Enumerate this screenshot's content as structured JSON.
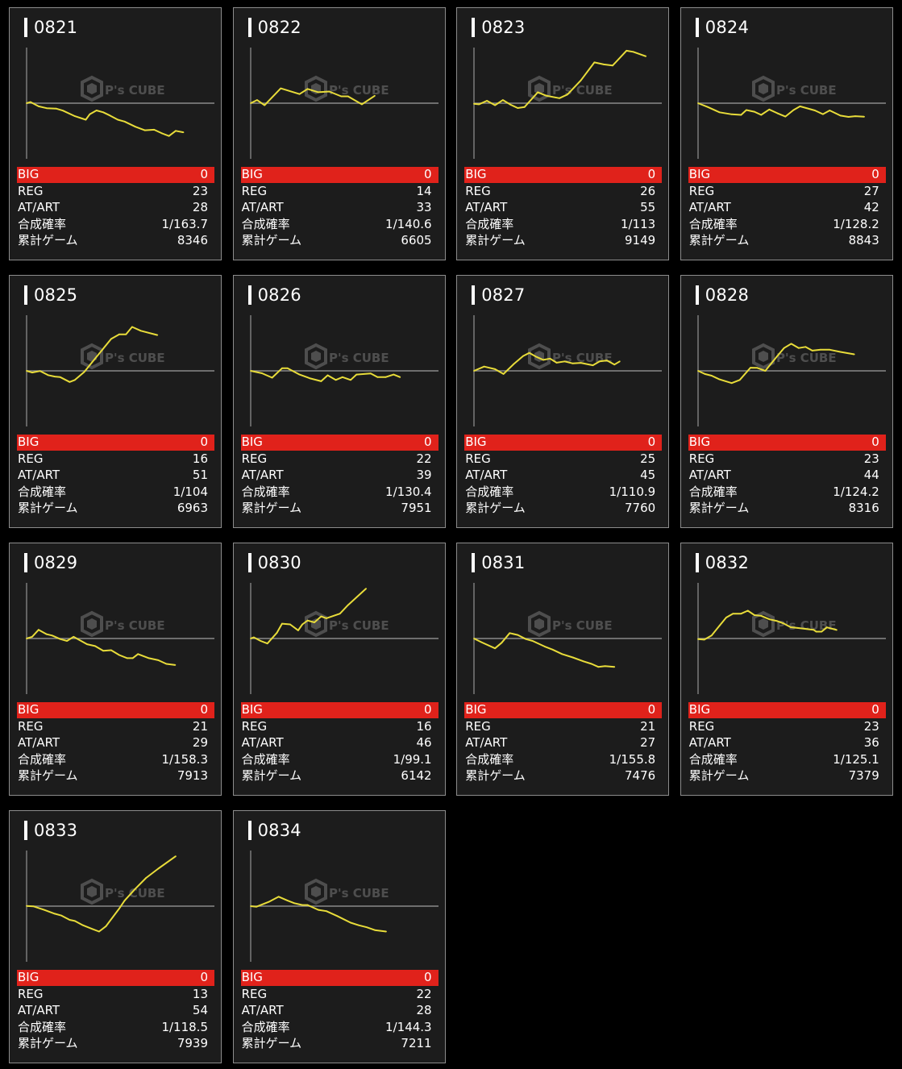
{
  "labels": {
    "big": "BIG",
    "reg": "REG",
    "at": "AT/ART",
    "prob": "合成確率",
    "games": "累計ゲーム"
  },
  "watermark": "P's CUBE",
  "colors": {
    "line": "#e8dc3a",
    "big_bar": "#e0221b",
    "axis": "#8a8a8a",
    "card_bg": "#1c1c1c"
  },
  "chart_axes": {
    "x_unit": "games",
    "x_range": [
      0,
      10000
    ],
    "y_unit": "diff",
    "y_range": [
      -3000,
      3000
    ]
  },
  "machines": [
    {
      "id": "0821",
      "big": "0",
      "reg": "23",
      "at": "28",
      "prob": "1/163.7",
      "games": "8346",
      "x": [
        0,
        210,
        640,
        1070,
        1570,
        1930,
        2570,
        3150,
        3360,
        3720,
        4080,
        4430,
        4860,
        5220,
        5790,
        6290,
        6790,
        7220,
        7580,
        7940,
        8346
      ],
      "y": [
        0,
        60,
        -170,
        -270,
        -290,
        -400,
        -700,
        -890,
        -600,
        -390,
        -490,
        -660,
        -890,
        -990,
        -1270,
        -1460,
        -1430,
        -1630,
        -1770,
        -1490,
        -1570
      ]
    },
    {
      "id": "0822",
      "big": "0",
      "reg": "14",
      "at": "33",
      "prob": "1/140.6",
      "games": "6605",
      "x": [
        0,
        340,
        740,
        1600,
        2600,
        3030,
        3600,
        4180,
        4820,
        5180,
        5920,
        6605
      ],
      "y": [
        0,
        170,
        -110,
        800,
        490,
        770,
        590,
        630,
        370,
        370,
        -60,
        400
      ]
    },
    {
      "id": "0823",
      "big": "0",
      "reg": "26",
      "at": "55",
      "prob": "1/113",
      "games": "9149",
      "x": [
        0,
        260,
        690,
        1120,
        1540,
        1970,
        2330,
        2690,
        3400,
        3830,
        4550,
        4980,
        5690,
        6410,
        6910,
        7380,
        8120,
        8480,
        9149
      ],
      "y": [
        -30,
        -60,
        130,
        -110,
        170,
        -90,
        -260,
        -210,
        590,
        410,
        270,
        470,
        1230,
        2200,
        2090,
        2030,
        2830,
        2770,
        2530
      ]
    },
    {
      "id": "0824",
      "big": "0",
      "reg": "27",
      "at": "42",
      "prob": "1/128.2",
      "games": "8843",
      "x": [
        0,
        500,
        1140,
        1790,
        2290,
        2570,
        3000,
        3360,
        3790,
        4220,
        4650,
        5080,
        5430,
        6220,
        6650,
        7010,
        7580,
        8010,
        8370,
        8843
      ],
      "y": [
        0,
        -200,
        -490,
        -600,
        -630,
        -370,
        -460,
        -630,
        -340,
        -540,
        -720,
        -370,
        -170,
        -390,
        -590,
        -390,
        -670,
        -740,
        -700,
        -730
      ]
    },
    {
      "id": "0825",
      "big": "0",
      "reg": "16",
      "at": "51",
      "prob": "1/104",
      "games": "6963",
      "x": [
        0,
        290,
        720,
        1140,
        1500,
        1790,
        2290,
        2570,
        3070,
        3650,
        4500,
        4930,
        5290,
        5620,
        6080,
        6963
      ],
      "y": [
        0,
        -90,
        -10,
        -230,
        -310,
        -340,
        -600,
        -490,
        -60,
        660,
        1720,
        1970,
        1970,
        2370,
        2160,
        1930
      ]
    },
    {
      "id": "0826",
      "big": "0",
      "reg": "22",
      "at": "39",
      "prob": "1/130.4",
      "games": "7951",
      "x": [
        0,
        600,
        1140,
        1670,
        1960,
        2600,
        3170,
        3750,
        4100,
        4530,
        4890,
        5320,
        5630,
        6390,
        6750,
        7180,
        7610,
        7951
      ],
      "y": [
        0,
        -130,
        -370,
        140,
        140,
        -200,
        -410,
        -560,
        -240,
        -490,
        -340,
        -490,
        -200,
        -140,
        -340,
        -340,
        -200,
        -340
      ]
    },
    {
      "id": "0827",
      "big": "0",
      "reg": "25",
      "at": "45",
      "prob": "1/110.9",
      "games": "7760",
      "x": [
        0,
        540,
        1120,
        1570,
        2120,
        2620,
        2950,
        3290,
        3690,
        4050,
        4400,
        4830,
        5260,
        5690,
        6330,
        6690,
        7080,
        7480,
        7760
      ],
      "y": [
        0,
        230,
        90,
        -170,
        370,
        800,
        970,
        770,
        590,
        660,
        440,
        510,
        400,
        430,
        300,
        510,
        560,
        340,
        510
      ]
    },
    {
      "id": "0828",
      "big": "0",
      "reg": "23",
      "at": "44",
      "prob": "1/124.2",
      "games": "8316",
      "x": [
        0,
        360,
        720,
        1140,
        1790,
        2220,
        2790,
        3150,
        3580,
        4220,
        4580,
        4960,
        5360,
        5720,
        6080,
        6510,
        7010,
        7580,
        8316
      ],
      "y": [
        0,
        -170,
        -260,
        -460,
        -660,
        -490,
        170,
        160,
        0,
        800,
        1230,
        1460,
        1230,
        1290,
        1090,
        1140,
        1140,
        1020,
        890
      ]
    },
    {
      "id": "0829",
      "big": "0",
      "reg": "21",
      "at": "29",
      "prob": "1/158.3",
      "games": "7913",
      "x": [
        0,
        290,
        640,
        1070,
        1360,
        1790,
        2150,
        2500,
        3220,
        3650,
        4080,
        4500,
        4930,
        5360,
        5650,
        5930,
        6510,
        7010,
        7440,
        7913
      ],
      "y": [
        0,
        90,
        470,
        230,
        160,
        -30,
        -130,
        90,
        -310,
        -410,
        -660,
        -630,
        -890,
        -1060,
        -1060,
        -840,
        -1060,
        -1170,
        -1370,
        -1430
      ]
    },
    {
      "id": "0830",
      "big": "0",
      "reg": "16",
      "at": "46",
      "prob": "1/99.1",
      "games": "6142",
      "x": [
        0,
        170,
        530,
        890,
        1390,
        1670,
        2100,
        2530,
        2750,
        3030,
        3390,
        3750,
        4030,
        4750,
        5180,
        6142
      ],
      "y": [
        0,
        60,
        -130,
        -270,
        300,
        800,
        760,
        440,
        760,
        970,
        870,
        1190,
        1090,
        1340,
        1800,
        2690
      ]
    },
    {
      "id": "0831",
      "big": "0",
      "reg": "21",
      "at": "27",
      "prob": "1/155.8",
      "games": "7476",
      "x": [
        0,
        400,
        1120,
        1470,
        1900,
        2330,
        2760,
        3120,
        3760,
        4190,
        4690,
        5260,
        5830,
        6260,
        6620,
        6980,
        7476
      ],
      "y": [
        0,
        -200,
        -530,
        -230,
        290,
        190,
        -30,
        -130,
        -430,
        -600,
        -840,
        -1020,
        -1230,
        -1370,
        -1530,
        -1490,
        -1530
      ]
    },
    {
      "id": "0832",
      "big": "0",
      "reg": "23",
      "at": "36",
      "prob": "1/125.1",
      "games": "7379",
      "x": [
        0,
        330,
        720,
        1140,
        1500,
        1860,
        2290,
        2650,
        3000,
        3360,
        3790,
        4220,
        4580,
        4930,
        5290,
        5790,
        6150,
        6290,
        6580,
        6860,
        7379
      ],
      "y": [
        -30,
        -60,
        160,
        690,
        1130,
        1340,
        1340,
        1500,
        1260,
        1220,
        1040,
        940,
        800,
        610,
        570,
        510,
        470,
        370,
        370,
        600,
        460
      ]
    },
    {
      "id": "0833",
      "big": "0",
      "reg": "13",
      "at": "54",
      "prob": "1/118.5",
      "games": "7939",
      "x": [
        0,
        360,
        930,
        1500,
        1860,
        2290,
        2570,
        3000,
        3500,
        3860,
        4220,
        4930,
        5220,
        5790,
        6360,
        7010,
        7939
      ],
      "y": [
        10,
        -10,
        -200,
        -410,
        -510,
        -740,
        -800,
        -1030,
        -1230,
        -1370,
        -1090,
        -130,
        300,
        940,
        1520,
        2020,
        2690
      ]
    },
    {
      "id": "0834",
      "big": "0",
      "reg": "22",
      "at": "28",
      "prob": "1/144.3",
      "games": "7211",
      "x": [
        0,
        310,
        960,
        1490,
        1960,
        2320,
        2750,
        3030,
        3600,
        4030,
        4600,
        5320,
        5750,
        6180,
        6610,
        7211
      ],
      "y": [
        0,
        -30,
        230,
        510,
        300,
        160,
        60,
        60,
        -200,
        -270,
        -530,
        -890,
        -1030,
        -1140,
        -1290,
        -1370
      ]
    }
  ]
}
